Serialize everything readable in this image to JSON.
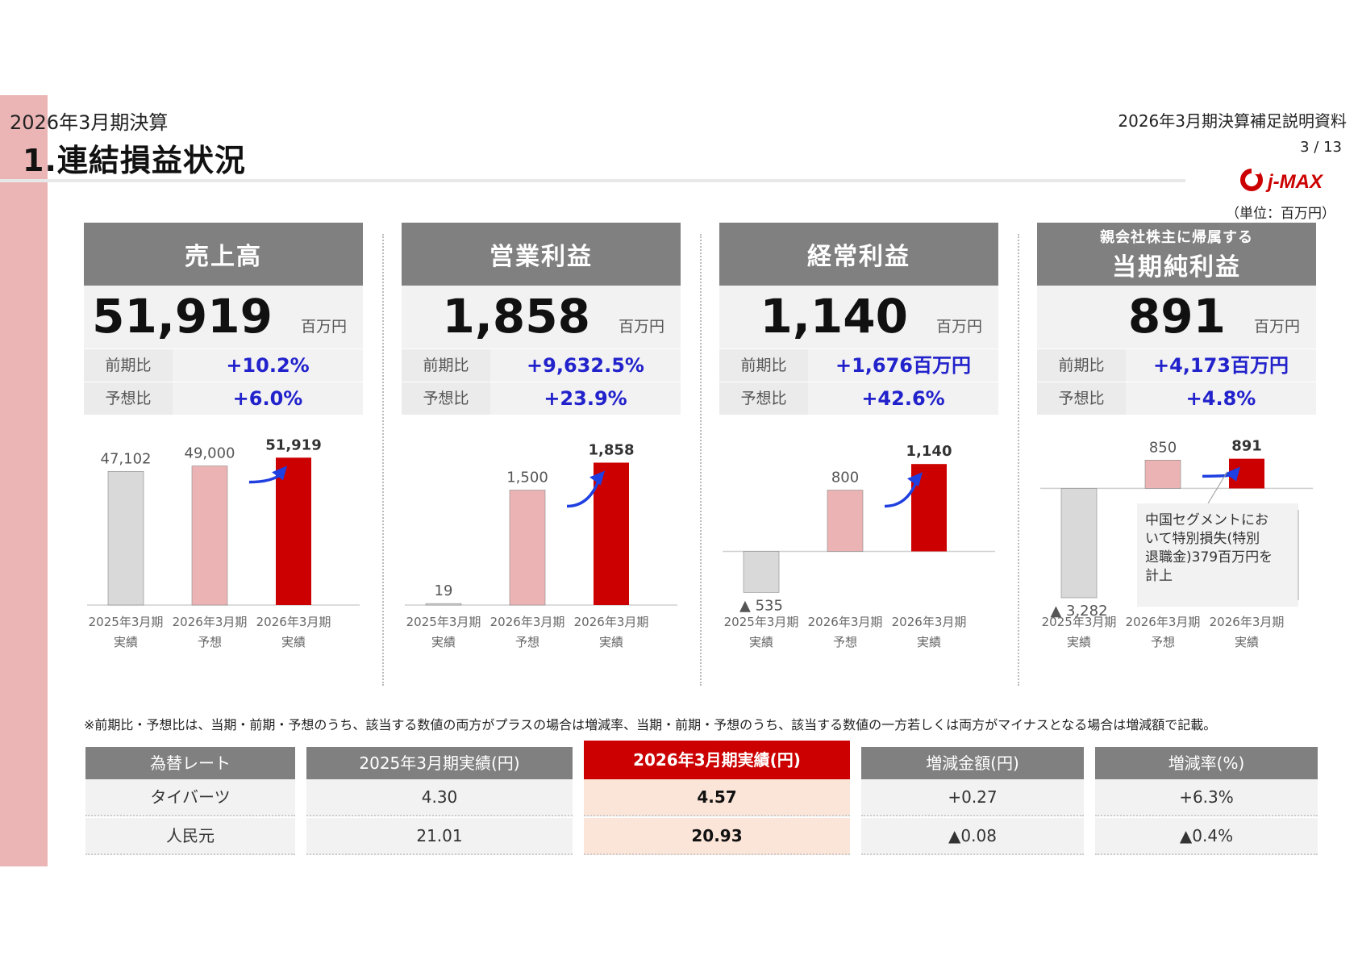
{
  "header": {
    "subtitle": "2026年3月期決算",
    "title": "1.連結損益状況",
    "doc_title": "2026年3月期決算補足説明資料",
    "page": "3 / 13",
    "logo_text": "j-MAX",
    "unit": "（単位：百万円）"
  },
  "kpis": [
    {
      "title": "売上高",
      "subtitle": "",
      "value": "51,919",
      "unit": "百万円",
      "yoy_label": "前期比",
      "yoy": "+10.2%",
      "plan_label": "予想比",
      "plan": "+6.0%"
    },
    {
      "title": "営業利益",
      "subtitle": "",
      "value": "1,858",
      "unit": "百万円",
      "yoy_label": "前期比",
      "yoy": "+9,632.5%",
      "plan_label": "予想比",
      "plan": "+23.9%"
    },
    {
      "title": "経常利益",
      "subtitle": "",
      "value": "1,140",
      "unit": "百万円",
      "yoy_label": "前期比",
      "yoy": "+1,676百万円",
      "plan_label": "予想比",
      "plan": "+42.6%"
    },
    {
      "title": "当期純利益",
      "subtitle": "親会社株主に帰属する",
      "value": "891",
      "unit": "百万円",
      "yoy_label": "前期比",
      "yoy": "+4,173百万円",
      "plan_label": "予想比",
      "plan": "+4.8%"
    }
  ],
  "chart_data": [
    {
      "type": "bar",
      "categories": [
        "2025年3月期\n実績",
        "2026年3月期\n予想",
        "2026年3月期\n実績"
      ],
      "values": [
        47102,
        49000,
        51919
      ],
      "labels": [
        "47,102",
        "49,000",
        "51,919"
      ],
      "ylim": [
        0,
        54000
      ],
      "colors": [
        "#d9d9d9",
        "#ebb3b3",
        "#cc0000"
      ]
    },
    {
      "type": "bar",
      "categories": [
        "2025年3月期\n実績",
        "2026年3月期\n予想",
        "2026年3月期\n実績"
      ],
      "values": [
        19,
        1500,
        1858
      ],
      "labels": [
        "19",
        "1,500",
        "1,858"
      ],
      "ylim": [
        0,
        2000
      ],
      "colors": [
        "#d9d9d9",
        "#ebb3b3",
        "#cc0000"
      ]
    },
    {
      "type": "bar",
      "categories": [
        "2025年3月期\n実績",
        "2026年3月期\n予想",
        "2026年3月期\n実績"
      ],
      "values": [
        -535,
        800,
        1140
      ],
      "labels": [
        "▲ 535",
        "800",
        "1,140"
      ],
      "ylim": [
        -700,
        1300
      ],
      "colors": [
        "#d9d9d9",
        "#ebb3b3",
        "#cc0000"
      ]
    },
    {
      "type": "bar",
      "categories": [
        "2025年3月期\n実績",
        "2026年3月期\n予想",
        "2026年3月期\n実績"
      ],
      "values": [
        -3282,
        850,
        891
      ],
      "labels": [
        "▲ 3,282",
        "850",
        "891"
      ],
      "ylim": [
        -3500,
        1100
      ],
      "colors": [
        "#d9d9d9",
        "#ebb3b3",
        "#cc0000"
      ],
      "annotation": "中国セグメントにおいて特別損失(特別退職金)379百万円を計上"
    }
  ],
  "footnote": "※前期比・予想比は、当期・前期・予想のうち、該当する数値の両方がプラスの場合は増減率、当期・前期・予想のうち、該当する数値の一方若しくは両方がマイナスとなる場合は増減額で記載。",
  "fx": {
    "headers": [
      "為替レート",
      "2025年3月期実績(円)",
      "2026年3月期実績(円)",
      "増減金額(円)",
      "増減率(%)"
    ],
    "rows": [
      [
        "タイバーツ",
        "4.30",
        "4.57",
        "+0.27",
        "+6.3%"
      ],
      [
        "人民元",
        "21.01",
        "20.93",
        "▲0.08",
        "▲0.4%"
      ]
    ]
  }
}
